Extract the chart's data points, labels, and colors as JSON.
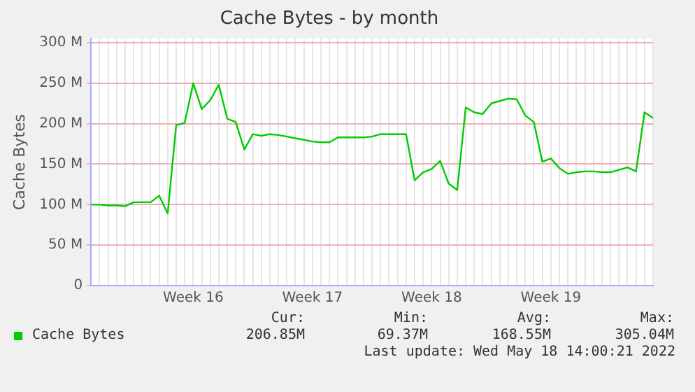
{
  "chart_data": {
    "type": "line",
    "title": "Cache Bytes - by month",
    "ylabel": "Cache Bytes",
    "categories": [
      null,
      null,
      null,
      null,
      null,
      null,
      null,
      null,
      null,
      null,
      null,
      null,
      "Week 16",
      null,
      null,
      null,
      null,
      null,
      null,
      null,
      null,
      null,
      null,
      null,
      null,
      null,
      "Week 17",
      null,
      null,
      null,
      null,
      null,
      null,
      null,
      null,
      null,
      null,
      null,
      null,
      null,
      "Week 18",
      null,
      null,
      null,
      null,
      null,
      null,
      null,
      null,
      null,
      null,
      null,
      null,
      null,
      "Week 19",
      null,
      null,
      null,
      null,
      null,
      null,
      null,
      null,
      null,
      null,
      null,
      null
    ],
    "ylim": [
      0,
      305
    ],
    "yticks": [
      0,
      {
        "value": 50,
        "label": "50 M"
      },
      {
        "value": 100,
        "label": "100 M"
      },
      {
        "value": 150,
        "label": "150 M"
      },
      {
        "value": 200,
        "label": "200 M"
      },
      {
        "value": 250,
        "label": "250 M"
      },
      {
        "value": 300,
        "label": "300 M"
      }
    ],
    "grid": true,
    "legend": "bottom left",
    "marker": "none",
    "line_style": "solid",
    "series": [
      {
        "name": "Cache Bytes",
        "color": "#00cc00",
        "values": [
          100,
          100,
          99,
          99,
          98,
          103,
          103,
          103,
          111,
          89,
          198,
          201,
          250,
          218,
          229,
          248,
          206,
          202,
          168,
          187,
          185,
          187,
          186,
          184,
          182,
          180,
          178,
          177,
          177,
          183,
          183,
          183,
          183,
          184,
          187,
          187,
          187,
          187,
          130,
          140,
          144,
          154,
          126,
          118,
          220,
          214,
          212,
          225,
          228,
          231,
          230,
          210,
          202,
          153,
          157,
          145,
          138,
          140,
          141,
          141,
          140,
          140,
          143,
          146,
          141,
          214,
          207
        ]
      }
    ],
    "annotations": [
      "Cur:",
      "206.85M",
      "Min:",
      "69.37M",
      "Avg:",
      "168.55M",
      "Max:",
      "305.04M",
      "Last update: Wed May 18 14:00:21 2022"
    ]
  }
}
